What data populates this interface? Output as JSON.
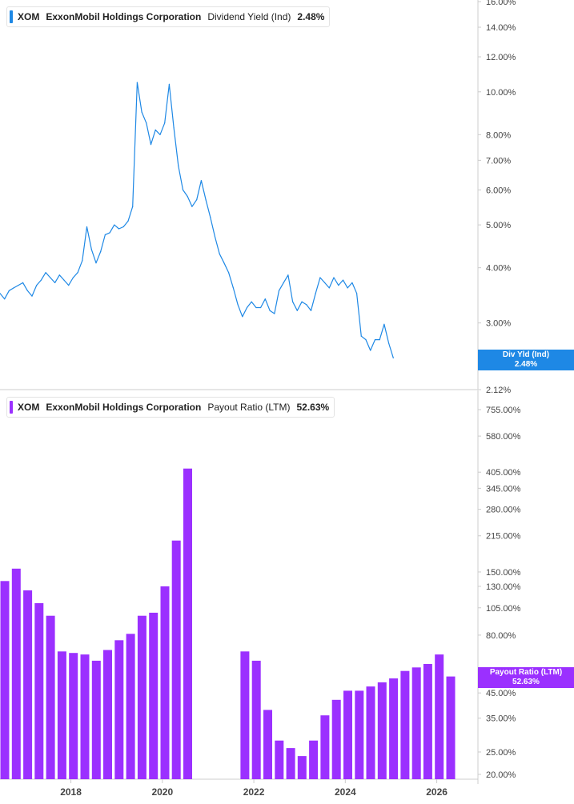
{
  "colors": {
    "yield": "#1e88e5",
    "payout": "#9b30ff",
    "axis": "#cccccc",
    "text": "#444444"
  },
  "legend_top": {
    "ticker": "XOM",
    "company": "ExxonMobil Holdings Corporation",
    "metric": "Dividend Yield (Ind)",
    "value": "2.48%"
  },
  "legend_bottom": {
    "ticker": "XOM",
    "company": "ExxonMobil Holdings Corporation",
    "metric": "Payout Ratio (LTM)",
    "value": "52.63%"
  },
  "badge_top": {
    "label": "Div Yld (Ind)",
    "value": "2.48%",
    "hidden_tick": "2.42%"
  },
  "badge_bottom": {
    "label": "Payout Ratio (LTM)",
    "value": "52.63%"
  },
  "chart_data": [
    {
      "type": "line",
      "title": "",
      "series": [
        {
          "name": "Dividend Yield (Ind)",
          "x_start": 2016.5,
          "x_step": 0.1,
          "values": [
            3.5,
            3.4,
            3.55,
            3.6,
            3.65,
            3.7,
            3.55,
            3.45,
            3.65,
            3.75,
            3.9,
            3.8,
            3.7,
            3.85,
            3.75,
            3.65,
            3.8,
            3.9,
            4.15,
            4.95,
            4.4,
            4.1,
            4.35,
            4.75,
            4.8,
            5.0,
            4.9,
            4.95,
            5.1,
            5.5,
            10.5,
            9.0,
            8.5,
            7.6,
            8.2,
            8.0,
            8.5,
            10.4,
            8.3,
            6.8,
            6.0,
            5.8,
            5.5,
            5.7,
            6.3,
            5.7,
            5.2,
            4.7,
            4.3,
            4.1,
            3.9,
            3.6,
            3.3,
            3.1,
            3.25,
            3.35,
            3.25,
            3.25,
            3.4,
            3.2,
            3.15,
            3.55,
            3.7,
            3.85,
            3.35,
            3.2,
            3.35,
            3.3,
            3.2,
            3.5,
            3.8,
            3.7,
            3.6,
            3.8,
            3.65,
            3.75,
            3.6,
            3.7,
            3.5,
            2.8,
            2.75,
            2.6,
            2.75,
            2.75,
            2.98,
            2.7,
            2.5
          ]
        }
      ],
      "x_ticks": [
        "2018",
        "2020",
        "2022",
        "2024",
        "2026"
      ],
      "y_ticks": [
        "2.12%",
        "3.00%",
        "4.00%",
        "5.00%",
        "6.00%",
        "7.00%",
        "8.00%",
        "10.00%",
        "12.00%",
        "14.00%",
        "16.00%"
      ],
      "y_scale": "log",
      "ylim": [
        2.12,
        16
      ],
      "xlim": [
        2016.5,
        2026.95
      ]
    },
    {
      "type": "bar",
      "title": "",
      "series": [
        {
          "name": "Payout Ratio (LTM)",
          "x": [
            2016.5,
            2016.75,
            2017.0,
            2017.25,
            2017.5,
            2017.75,
            2018.0,
            2018.25,
            2018.5,
            2018.75,
            2019.0,
            2019.25,
            2019.5,
            2019.75,
            2020.0,
            2020.25,
            2020.5,
            2020.75,
            2021.75,
            2022.0,
            2022.25,
            2022.5,
            2022.75,
            2023.0,
            2023.25,
            2023.5,
            2023.75,
            2024.0,
            2024.25,
            2024.5,
            2024.75,
            2025.0,
            2025.25,
            2025.5,
            2025.75,
            2026.0,
            2026.25,
            2026.5
          ],
          "values": [
            137,
            155,
            125,
            110,
            97,
            68,
            67,
            66,
            62,
            69,
            76,
            81,
            97,
            100,
            130,
            205,
            420,
            0,
            68,
            62,
            38,
            28,
            26,
            24,
            28,
            36,
            42,
            46,
            46,
            48,
            50,
            52,
            56,
            58,
            60,
            66,
            53,
            0
          ]
        }
      ],
      "x_ticks": [
        "2018",
        "2020",
        "2022",
        "2024",
        "2026"
      ],
      "y_ticks": [
        "20.00%",
        "25.00%",
        "35.00%",
        "45.00%",
        "80.00%",
        "105.00%",
        "130.00%",
        "150.00%",
        "215.00%",
        "280.00%",
        "345.00%",
        "405.00%",
        "580.00%",
        "755.00%"
      ],
      "y_scale": "log",
      "ylim": [
        20,
        755
      ],
      "xlim": [
        2016.5,
        2026.95
      ]
    }
  ]
}
